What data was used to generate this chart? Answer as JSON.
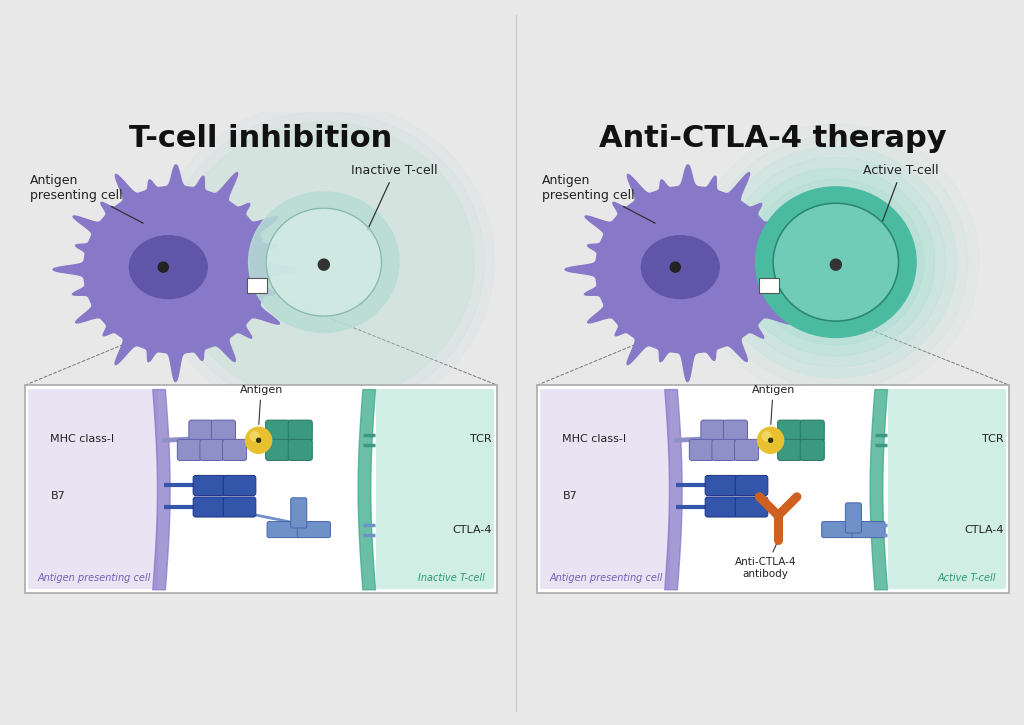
{
  "bg_color": "#e8e8e8",
  "panel_bg": "#ffffff",
  "left_title": "T-cell inhibition",
  "right_title": "Anti-CTLA-4 therapy",
  "title_fontsize": 22,
  "title_fontweight": "bold",
  "apc_color": "#8878c8",
  "apc_body_light": "#a098d8",
  "apc_nucleus_color": "#6055a8",
  "tcell_inactive_color": "#b8ddd5",
  "tcell_inactive_inner": "#d8eee8",
  "tcell_active_color": "#4abba0",
  "tcell_active_inner": "#70ccb8",
  "tcell_active_glow": "#a0e0d0",
  "mhc_color": "#9090c8",
  "tcr_color": "#3a9980",
  "b7_color": "#3355aa",
  "ctla4_color": "#7090c8",
  "antigen_color": "#e8c030",
  "antigen_shadow": "#c09010",
  "antibody_color": "#d06020",
  "box_border": "#999999",
  "cell_membrane_apc": "#8878c8",
  "cell_membrane_tcell": "#3aaa88",
  "zoom_box_bg_left": "#e8e4f4",
  "zoom_box_bg_right": "#d0eee4",
  "label_apc_inactive": "Antigen\npresenting cell",
  "label_tcell_inactive": "Inactive T-cell",
  "label_apc_active": "Antigen\npresenting cell",
  "label_tcell_active": "Active T-cell",
  "label_mhc": "MHC class-I",
  "label_tcr": "TCR",
  "label_b7": "B7",
  "label_ctla4": "CTLA-4",
  "label_antigen": "Antigen",
  "label_antibody": "Anti-CTLA-4\nantibody",
  "label_apc_box": "Antigen presenting cell",
  "label_tcell_box_inactive": "Inactive T-cell",
  "label_tcell_box_active": "Active T-cell"
}
